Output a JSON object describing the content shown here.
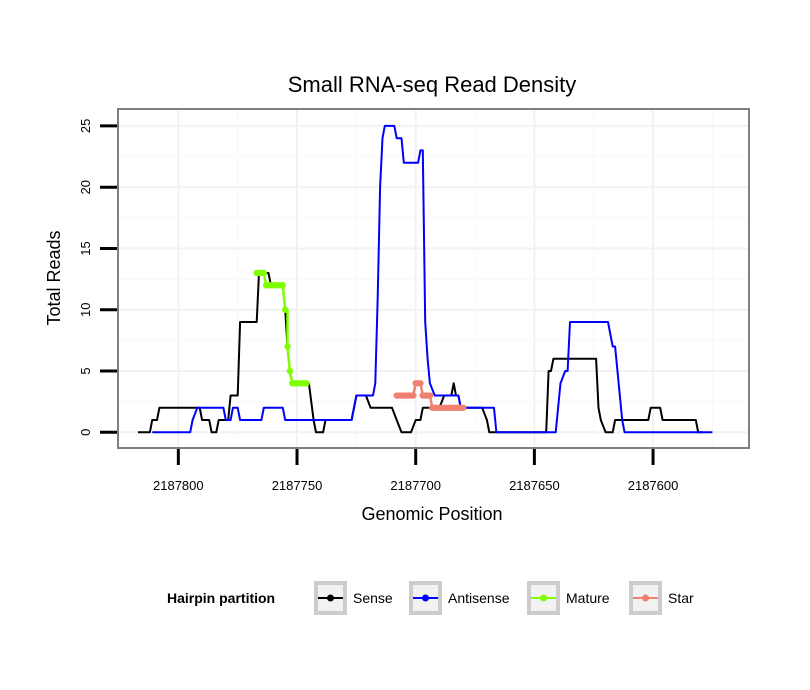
{
  "chart_data": {
    "type": "line",
    "title": "Small RNA-seq Read Density",
    "xlabel": "Genomic Position",
    "ylabel": "Total Reads",
    "x_reversed": true,
    "xlim": [
      2187825,
      2187560
    ],
    "ylim": [
      -1.2,
      26.3
    ],
    "xticks": [
      2187800,
      2187750,
      2187700,
      2187650,
      2187600
    ],
    "xtick_labels": [
      "2187800",
      "2187750",
      "2187700",
      "2187650",
      "2187600"
    ],
    "yticks": [
      0,
      5,
      10,
      15,
      20,
      25
    ],
    "ytick_labels": [
      "0",
      "5",
      "10",
      "15",
      "20",
      "25"
    ],
    "grid": true,
    "legend": {
      "title": "Hairpin partition",
      "position": "bottom",
      "entries": [
        {
          "name": "Sense",
          "color": "#000000"
        },
        {
          "name": "Antisense",
          "color": "#0000ff"
        },
        {
          "name": "Mature",
          "color": "#7fff00"
        },
        {
          "name": "Star",
          "color": "#f08070"
        }
      ]
    },
    "series": [
      {
        "name": "Sense",
        "color": "#000000",
        "points": [
          [
            2187817,
            0
          ],
          [
            2187812,
            0
          ],
          [
            2187811,
            1
          ],
          [
            2187809,
            1
          ],
          [
            2187808,
            2
          ],
          [
            2187791,
            2
          ],
          [
            2187790,
            1
          ],
          [
            2187787,
            1
          ],
          [
            2187786,
            0
          ],
          [
            2187784,
            0
          ],
          [
            2187783,
            1
          ],
          [
            2187779,
            1
          ],
          [
            2187778,
            3
          ],
          [
            2187775,
            3
          ],
          [
            2187774,
            9
          ],
          [
            2187767,
            9
          ],
          [
            2187766,
            13
          ],
          [
            2187762,
            13
          ],
          [
            2187761,
            12
          ],
          [
            2187756,
            12
          ],
          [
            2187755,
            10
          ],
          [
            2187754,
            7
          ],
          [
            2187753,
            5
          ],
          [
            2187752,
            4
          ],
          [
            2187745,
            4
          ],
          [
            2187743,
            1
          ],
          [
            2187742,
            0
          ],
          [
            2187739,
            0
          ],
          [
            2187738,
            1
          ],
          [
            2187727,
            1
          ],
          [
            2187725,
            3
          ],
          [
            2187721,
            3
          ],
          [
            2187719,
            2
          ],
          [
            2187710,
            2
          ],
          [
            2187708,
            1
          ],
          [
            2187706,
            0
          ],
          [
            2187702,
            0
          ],
          [
            2187700,
            1
          ],
          [
            2187698,
            1
          ],
          [
            2187697,
            2
          ],
          [
            2187690,
            2
          ],
          [
            2187688,
            3
          ],
          [
            2187685,
            3
          ],
          [
            2187684,
            4
          ],
          [
            2187683,
            3
          ],
          [
            2187682,
            3
          ],
          [
            2187681,
            2
          ],
          [
            2187672,
            2
          ],
          [
            2187670,
            1
          ],
          [
            2187669,
            0
          ],
          [
            2187645,
            0
          ],
          [
            2187644,
            5
          ],
          [
            2187643,
            5
          ],
          [
            2187642,
            6
          ],
          [
            2187624,
            6
          ],
          [
            2187623,
            2
          ],
          [
            2187622,
            1
          ],
          [
            2187620,
            0
          ],
          [
            2187617,
            0
          ],
          [
            2187616,
            1
          ],
          [
            2187602,
            1
          ],
          [
            2187601,
            2
          ],
          [
            2187597,
            2
          ],
          [
            2187596,
            1
          ],
          [
            2187582,
            1
          ],
          [
            2187581,
            0
          ],
          [
            2187579,
            0
          ]
        ]
      },
      {
        "name": "Antisense",
        "color": "#0000ff",
        "points": [
          [
            2187811,
            0
          ],
          [
            2187795,
            0
          ],
          [
            2187794,
            1
          ],
          [
            2187792,
            2
          ],
          [
            2187781,
            2
          ],
          [
            2187780,
            1
          ],
          [
            2187778,
            1
          ],
          [
            2187777,
            2
          ],
          [
            2187775,
            2
          ],
          [
            2187774,
            1
          ],
          [
            2187765,
            1
          ],
          [
            2187764,
            2
          ],
          [
            2187756,
            2
          ],
          [
            2187755,
            1
          ],
          [
            2187727,
            1
          ],
          [
            2187725,
            3
          ],
          [
            2187718,
            3
          ],
          [
            2187717,
            4
          ],
          [
            2187716,
            11
          ],
          [
            2187715,
            20
          ],
          [
            2187714,
            24
          ],
          [
            2187713,
            25
          ],
          [
            2187709,
            25
          ],
          [
            2187708,
            24
          ],
          [
            2187706,
            24
          ],
          [
            2187705,
            22
          ],
          [
            2187699,
            22
          ],
          [
            2187698,
            23
          ],
          [
            2187697,
            23
          ],
          [
            2187696,
            9
          ],
          [
            2187695,
            6
          ],
          [
            2187694,
            4
          ],
          [
            2187692,
            3
          ],
          [
            2187682,
            3
          ],
          [
            2187681,
            2
          ],
          [
            2187667,
            2
          ],
          [
            2187666,
            0
          ],
          [
            2187641,
            0
          ],
          [
            2187639,
            4
          ],
          [
            2187637,
            5
          ],
          [
            2187636,
            5
          ],
          [
            2187635,
            9
          ],
          [
            2187619,
            9
          ],
          [
            2187617,
            7
          ],
          [
            2187616,
            7
          ],
          [
            2187613,
            1
          ],
          [
            2187612,
            0
          ],
          [
            2187575,
            0
          ]
        ]
      },
      {
        "name": "Mature",
        "color": "#7fff00",
        "marker": true,
        "points": [
          [
            2187767,
            13
          ],
          [
            2187764,
            13
          ],
          [
            2187763,
            12
          ],
          [
            2187756,
            12
          ],
          [
            2187755,
            10
          ],
          [
            2187754,
            10
          ],
          [
            2187754,
            7
          ],
          [
            2187753,
            5
          ],
          [
            2187752,
            4
          ],
          [
            2187746,
            4
          ]
        ]
      },
      {
        "name": "Star",
        "color": "#f08070",
        "marker": true,
        "points": [
          [
            2187708,
            3
          ],
          [
            2187701,
            3
          ],
          [
            2187700,
            4
          ],
          [
            2187698,
            4
          ],
          [
            2187697,
            3
          ],
          [
            2187694,
            3
          ],
          [
            2187693,
            2
          ],
          [
            2187680,
            2
          ]
        ]
      }
    ]
  }
}
